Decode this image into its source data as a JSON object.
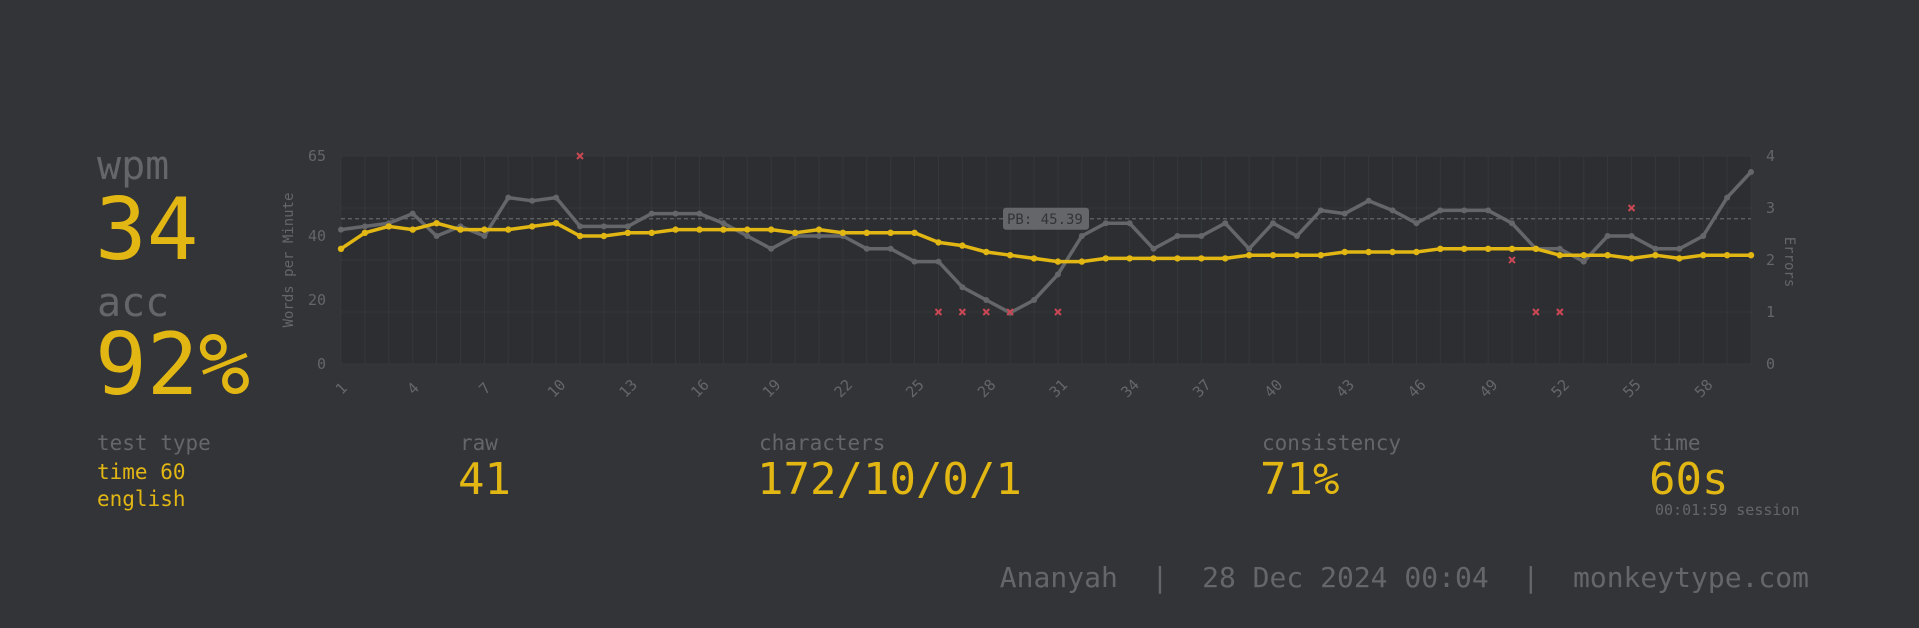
{
  "stats": {
    "wpm_label": "wpm",
    "wpm_value": "34",
    "acc_label": "acc",
    "acc_value": "92%",
    "test_type_label": "test type",
    "test_type_line1": "time 60",
    "test_type_line2": "english",
    "raw_label": "raw",
    "raw_value": "41",
    "characters_label": "characters",
    "characters_value": "172/10/0/1",
    "consistency_label": "consistency",
    "consistency_value": "71%",
    "time_label": "time",
    "time_value": "60s",
    "session_note": "00:01:59 session"
  },
  "footer": {
    "user": "Ananyah",
    "date": "28 Dec 2024 00:04",
    "site": "monkeytype.com",
    "separator": "|"
  },
  "colors": {
    "background": "#323437",
    "main": "#e2b714",
    "sub": "#646669",
    "error": "#ca4754",
    "raw_line": "#646669"
  },
  "chart_data": {
    "type": "line",
    "ylabel": "Words per Minute",
    "y2label": "Errors",
    "ylim": [
      0,
      65
    ],
    "y_ticks": [
      0,
      20,
      40,
      65
    ],
    "y2lim": [
      0,
      4
    ],
    "y2_ticks": [
      0,
      1,
      2,
      3,
      4
    ],
    "x": [
      1,
      2,
      3,
      4,
      5,
      6,
      7,
      8,
      9,
      10,
      11,
      12,
      13,
      14,
      15,
      16,
      17,
      18,
      19,
      20,
      21,
      22,
      23,
      24,
      25,
      26,
      27,
      28,
      29,
      30,
      31,
      32,
      33,
      34,
      35,
      36,
      37,
      38,
      39,
      40,
      41,
      42,
      43,
      44,
      45,
      46,
      47,
      48,
      49,
      50,
      51,
      52,
      53,
      54,
      55,
      56,
      57,
      58,
      59,
      60
    ],
    "x_tick_labels": [
      "1",
      "4",
      "7",
      "10",
      "13",
      "16",
      "19",
      "22",
      "25",
      "28",
      "31",
      "34",
      "37",
      "40",
      "43",
      "46",
      "49",
      "52",
      "55",
      "58"
    ],
    "pb_label": "PB: 45.39",
    "pb_value": 45.39,
    "series": [
      {
        "role": "wpm",
        "values": [
          36,
          41,
          43,
          42,
          44,
          42,
          42,
          42,
          43,
          44,
          40,
          40,
          41,
          41,
          42,
          42,
          42,
          42,
          42,
          41,
          42,
          41,
          41,
          41,
          41,
          38,
          37,
          35,
          34,
          33,
          32,
          32,
          33,
          33,
          33,
          33,
          33,
          33,
          34,
          34,
          34,
          34,
          35,
          35,
          35,
          35,
          36,
          36,
          36,
          36,
          36,
          34,
          34,
          34,
          33,
          34,
          33,
          34,
          34,
          34
        ]
      },
      {
        "role": "raw",
        "values": [
          42,
          43,
          44,
          47,
          40,
          43,
          40,
          52,
          51,
          52,
          43,
          43,
          43,
          47,
          47,
          47,
          44,
          40,
          36,
          40,
          40,
          40,
          36,
          36,
          32,
          32,
          24,
          20,
          16,
          20,
          28,
          40,
          44,
          44,
          36,
          40,
          40,
          44,
          36,
          44,
          40,
          48,
          47,
          51,
          48,
          44,
          48,
          48,
          48,
          44,
          36,
          36,
          32,
          40,
          40,
          36,
          36,
          40,
          52,
          60
        ]
      }
    ],
    "errors": [
      {
        "x": 11,
        "count": 4
      },
      {
        "x": 26,
        "count": 1
      },
      {
        "x": 27,
        "count": 1
      },
      {
        "x": 28,
        "count": 1
      },
      {
        "x": 29,
        "count": 1
      },
      {
        "x": 31,
        "count": 1
      },
      {
        "x": 50,
        "count": 2
      },
      {
        "x": 51,
        "count": 1
      },
      {
        "x": 52,
        "count": 1
      },
      {
        "x": 55,
        "count": 3
      }
    ]
  }
}
